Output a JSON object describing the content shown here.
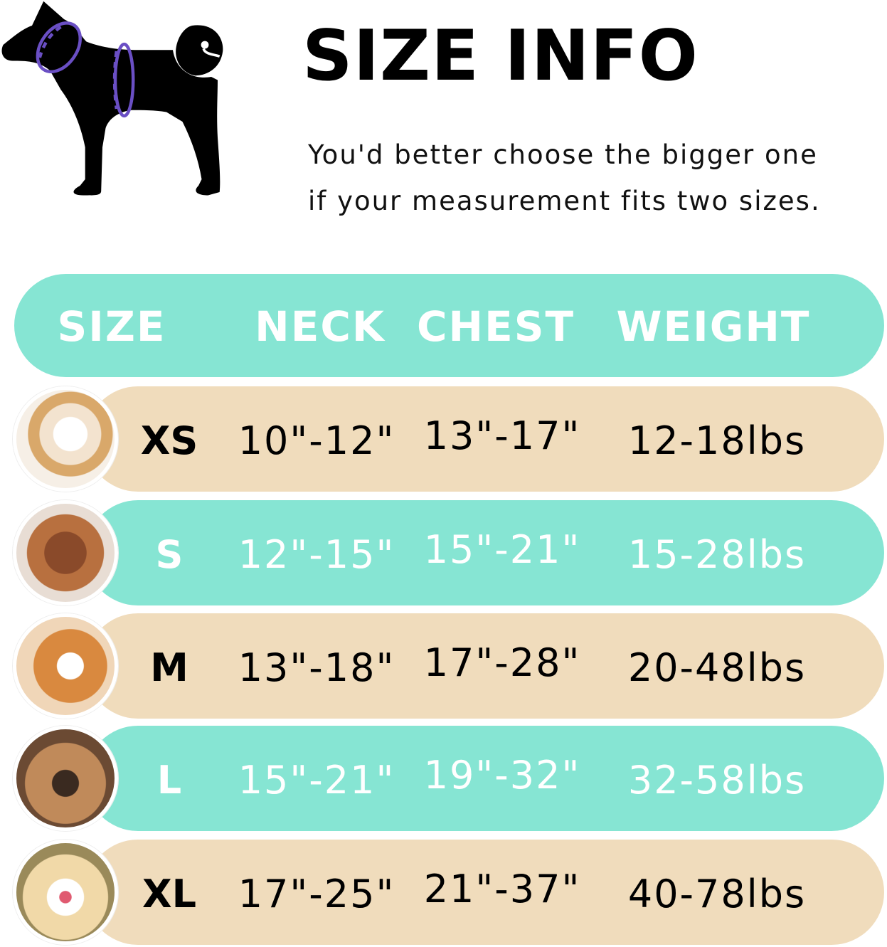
{
  "title": "SIZE INFO",
  "subtitle_line1": "You'd better choose the bigger one",
  "subtitle_line2": "if your measurement fits two sizes.",
  "colors": {
    "teal": "#86e5d3",
    "tan": "#f0dcbc",
    "ring": "#6a4fc4"
  },
  "headers": {
    "size": "SIZE",
    "neck": "NECK",
    "chest": "CHEST",
    "weight": "WEIGHT"
  },
  "rows": [
    {
      "size": "XS",
      "neck": "10\"-12\"",
      "chest": "13\"-17\"",
      "weight": "12-18lbs",
      "band": "tan",
      "photo": "pomeranian-photo"
    },
    {
      "size": "S",
      "neck": "12\"-15\"",
      "chest": "15\"-21\"",
      "weight": "15-28lbs",
      "band": "teal",
      "photo": "poodle-photo"
    },
    {
      "size": "M",
      "neck": "13\"-18\"",
      "chest": "17\"-28\"",
      "weight": "20-48lbs",
      "band": "tan",
      "photo": "shiba-photo"
    },
    {
      "size": "L",
      "neck": "15\"-21\"",
      "chest": "19\"-32\"",
      "weight": "32-58lbs",
      "band": "teal",
      "photo": "french-bulldog-photo"
    },
    {
      "size": "XL",
      "neck": "17\"-25\"",
      "chest": "21\"-37\"",
      "weight": "40-78lbs",
      "band": "tan",
      "photo": "labrador-photo"
    }
  ]
}
